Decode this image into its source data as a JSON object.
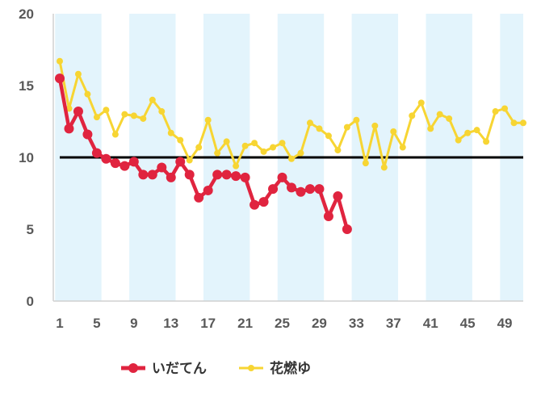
{
  "chart_data": {
    "type": "line",
    "xlim": [
      1,
      51
    ],
    "ylim": [
      0,
      20
    ],
    "x_ticks": [
      "1",
      "5",
      "9",
      "13",
      "17",
      "21",
      "25",
      "29",
      "33",
      "37",
      "41",
      "45",
      "49"
    ],
    "y_ticks": [
      "0",
      "5",
      "10",
      "15",
      "20"
    ],
    "reference_line": {
      "y": 10,
      "color": "#000000"
    },
    "shaded_bands": {
      "color": "#e3f4fc",
      "ranges": [
        [
          1,
          5
        ],
        [
          9,
          13
        ],
        [
          17,
          21
        ],
        [
          25,
          29
        ],
        [
          33,
          37
        ],
        [
          41,
          45
        ],
        [
          49,
          51
        ]
      ]
    },
    "legend_position": "bottom",
    "series": [
      {
        "name": "いだてん",
        "color": "#e0243f",
        "marker_radius": 6,
        "x": [
          1,
          2,
          3,
          4,
          5,
          6,
          7,
          8,
          9,
          10,
          11,
          12,
          13,
          14,
          15,
          16,
          17,
          18,
          19,
          20,
          21,
          22,
          23,
          24,
          25,
          26,
          27,
          28,
          29,
          30,
          31,
          32
        ],
        "y": [
          15.5,
          12.0,
          13.2,
          11.6,
          10.3,
          9.9,
          9.6,
          9.4,
          9.7,
          8.8,
          8.8,
          9.3,
          8.6,
          9.7,
          8.8,
          7.2,
          7.7,
          8.8,
          8.8,
          8.7,
          8.6,
          6.7,
          6.9,
          7.8,
          8.6,
          7.9,
          7.6,
          7.8,
          7.8,
          5.9,
          7.3,
          5.0
        ]
      },
      {
        "name": "花燃ゆ",
        "color": "#f7d533",
        "marker_radius": 4,
        "x": [
          1,
          2,
          3,
          4,
          5,
          6,
          7,
          8,
          9,
          10,
          11,
          12,
          13,
          14,
          15,
          16,
          17,
          18,
          19,
          20,
          21,
          22,
          23,
          24,
          25,
          26,
          27,
          28,
          29,
          30,
          31,
          32,
          33,
          34,
          35,
          36,
          37,
          38,
          39,
          40,
          41,
          42,
          43,
          44,
          45,
          46,
          47,
          48,
          49,
          50,
          51
        ],
        "y": [
          16.7,
          13.4,
          15.8,
          14.4,
          12.8,
          13.3,
          11.6,
          13.0,
          12.9,
          12.7,
          14.0,
          13.2,
          11.7,
          11.2,
          9.8,
          10.7,
          12.6,
          10.3,
          11.1,
          9.4,
          10.8,
          11.0,
          10.4,
          10.7,
          11.0,
          9.9,
          10.3,
          12.4,
          12.0,
          11.5,
          10.5,
          12.1,
          12.6,
          9.6,
          12.2,
          9.3,
          11.8,
          10.7,
          12.9,
          13.8,
          12.0,
          13.0,
          12.7,
          11.2,
          11.7,
          11.9,
          11.1,
          13.2,
          13.4,
          12.4,
          12.4
        ]
      }
    ]
  }
}
